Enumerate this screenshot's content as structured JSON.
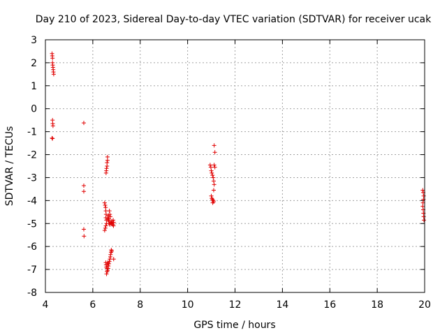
{
  "chart_data": {
    "type": "scatter",
    "title": "Day 210 of 2023, Sidereal Day-to-day VTEC variation (SDTVAR) for receiver ucak",
    "xlabel": "GPS time / hours",
    "ylabel": "SDTVAR / TECUs",
    "xlim": [
      4,
      20
    ],
    "ylim": [
      -8,
      3
    ],
    "xticks": [
      4,
      6,
      8,
      10,
      12,
      14,
      16,
      18,
      20
    ],
    "yticks": [
      -8,
      -7,
      -6,
      -5,
      -4,
      -3,
      -2,
      -1,
      0,
      1,
      2,
      3
    ],
    "grid": true,
    "marker": "plus",
    "color": "#e00000",
    "series": [
      {
        "name": "ucak",
        "points": [
          [
            4.28,
            2.4
          ],
          [
            4.29,
            2.3
          ],
          [
            4.3,
            2.2
          ],
          [
            4.3,
            2.0
          ],
          [
            4.31,
            1.9
          ],
          [
            4.32,
            1.8
          ],
          [
            4.33,
            1.7
          ],
          [
            4.34,
            1.6
          ],
          [
            4.35,
            1.5
          ],
          [
            4.3,
            -0.5
          ],
          [
            4.31,
            -0.65
          ],
          [
            4.32,
            -0.75
          ],
          [
            4.28,
            -1.28
          ],
          [
            4.3,
            -1.3
          ],
          [
            5.62,
            -0.62
          ],
          [
            5.62,
            -3.35
          ],
          [
            5.62,
            -3.6
          ],
          [
            5.62,
            -5.25
          ],
          [
            5.63,
            -5.55
          ],
          [
            6.62,
            -2.1
          ],
          [
            6.62,
            -2.25
          ],
          [
            6.6,
            -2.35
          ],
          [
            6.6,
            -2.5
          ],
          [
            6.58,
            -2.6
          ],
          [
            6.57,
            -2.7
          ],
          [
            6.56,
            -2.8
          ],
          [
            6.5,
            -4.1
          ],
          [
            6.52,
            -4.2
          ],
          [
            6.54,
            -4.3
          ],
          [
            6.55,
            -4.45
          ],
          [
            6.56,
            -4.6
          ],
          [
            6.55,
            -4.75
          ],
          [
            6.57,
            -4.85
          ],
          [
            6.58,
            -5.0
          ],
          [
            6.55,
            -5.1
          ],
          [
            6.53,
            -5.2
          ],
          [
            6.5,
            -5.3
          ],
          [
            6.62,
            -4.75
          ],
          [
            6.65,
            -4.85
          ],
          [
            6.68,
            -4.9
          ],
          [
            6.7,
            -5.0
          ],
          [
            6.72,
            -5.05
          ],
          [
            6.75,
            -4.95
          ],
          [
            6.78,
            -5.0
          ],
          [
            6.8,
            -4.9
          ],
          [
            6.82,
            -5.0
          ],
          [
            6.85,
            -5.05
          ],
          [
            6.87,
            -5.1
          ],
          [
            6.88,
            -4.95
          ],
          [
            6.86,
            -4.85
          ],
          [
            6.7,
            -4.45
          ],
          [
            6.72,
            -4.6
          ],
          [
            6.74,
            -4.7
          ],
          [
            6.68,
            -4.8
          ],
          [
            6.66,
            -4.65
          ],
          [
            6.78,
            -6.15
          ],
          [
            6.77,
            -6.25
          ],
          [
            6.75,
            -6.35
          ],
          [
            6.74,
            -6.45
          ],
          [
            6.72,
            -6.55
          ],
          [
            6.7,
            -6.65
          ],
          [
            6.68,
            -6.75
          ],
          [
            6.66,
            -6.85
          ],
          [
            6.65,
            -6.95
          ],
          [
            6.62,
            -7.05
          ],
          [
            6.6,
            -7.1
          ],
          [
            6.58,
            -7.2
          ],
          [
            6.55,
            -6.7
          ],
          [
            6.56,
            -6.8
          ],
          [
            6.57,
            -6.9
          ],
          [
            6.6,
            -6.95
          ],
          [
            6.62,
            -6.75
          ],
          [
            6.64,
            -6.7
          ],
          [
            6.88,
            -6.55
          ],
          [
            6.8,
            -6.2
          ],
          [
            10.95,
            -2.45
          ],
          [
            10.98,
            -2.55
          ],
          [
            11.0,
            -2.7
          ],
          [
            11.02,
            -2.8
          ],
          [
            11.05,
            -2.9
          ],
          [
            11.08,
            -3.0
          ],
          [
            11.1,
            -3.15
          ],
          [
            11.12,
            -3.3
          ],
          [
            11.1,
            -3.55
          ],
          [
            11.12,
            -1.6
          ],
          [
            11.15,
            -1.9
          ],
          [
            11.12,
            -2.45
          ],
          [
            11.15,
            -2.55
          ],
          [
            11.0,
            -3.8
          ],
          [
            11.02,
            -3.9
          ],
          [
            11.05,
            -3.95
          ],
          [
            11.08,
            -4.0
          ],
          [
            11.1,
            -4.05
          ],
          [
            11.06,
            -4.1
          ],
          [
            19.92,
            -3.55
          ],
          [
            19.94,
            -3.65
          ],
          [
            19.96,
            -3.8
          ],
          [
            19.95,
            -3.95
          ],
          [
            19.93,
            -4.1
          ],
          [
            19.92,
            -4.25
          ],
          [
            19.94,
            -4.4
          ],
          [
            19.95,
            -4.55
          ],
          [
            19.96,
            -4.7
          ],
          [
            19.97,
            -4.85
          ]
        ]
      }
    ]
  }
}
